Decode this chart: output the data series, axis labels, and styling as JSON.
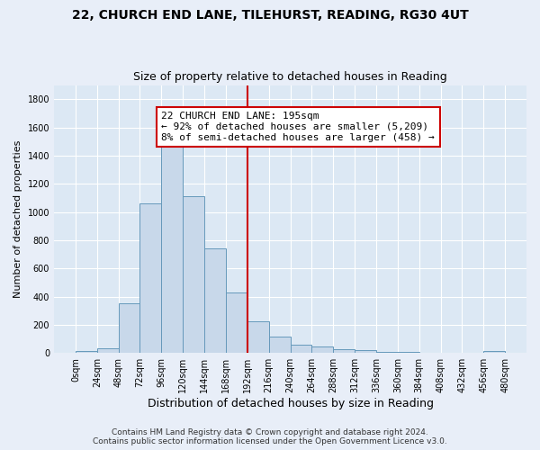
{
  "title_main": "22, CHURCH END LANE, TILEHURST, READING, RG30 4UT",
  "title_sub": "Size of property relative to detached houses in Reading",
  "xlabel": "Distribution of detached houses by size in Reading",
  "ylabel": "Number of detached properties",
  "bin_edges": [
    0,
    24,
    48,
    72,
    96,
    120,
    144,
    168,
    192,
    216,
    240,
    264,
    288,
    312,
    336,
    360,
    384,
    408,
    432,
    456,
    480
  ],
  "bar_heights": [
    15,
    35,
    350,
    1060,
    1480,
    1110,
    740,
    430,
    225,
    115,
    60,
    45,
    25,
    20,
    10,
    8,
    5,
    5,
    5,
    15
  ],
  "bar_color": "#c8d8ea",
  "bar_edge_color": "#6699bb",
  "vline_x": 192,
  "vline_color": "#cc0000",
  "annotation_text": "22 CHURCH END LANE: 195sqm\n← 92% of detached houses are smaller (5,209)\n8% of semi-detached houses are larger (458) →",
  "annotation_box_color": "#ffffff",
  "annotation_box_edge": "#cc0000",
  "ylim": [
    0,
    1900
  ],
  "yticks": [
    0,
    200,
    400,
    600,
    800,
    1000,
    1200,
    1400,
    1600,
    1800
  ],
  "background_color": "#e8eef8",
  "axes_bg_color": "#dce8f4",
  "grid_color": "#ffffff",
  "footer_line1": "Contains HM Land Registry data © Crown copyright and database right 2024.",
  "footer_line2": "Contains public sector information licensed under the Open Government Licence v3.0.",
  "title_main_fontsize": 10,
  "title_sub_fontsize": 9,
  "xlabel_fontsize": 9,
  "ylabel_fontsize": 8,
  "tick_fontsize": 7,
  "annotation_fontsize": 8,
  "footer_fontsize": 6.5
}
